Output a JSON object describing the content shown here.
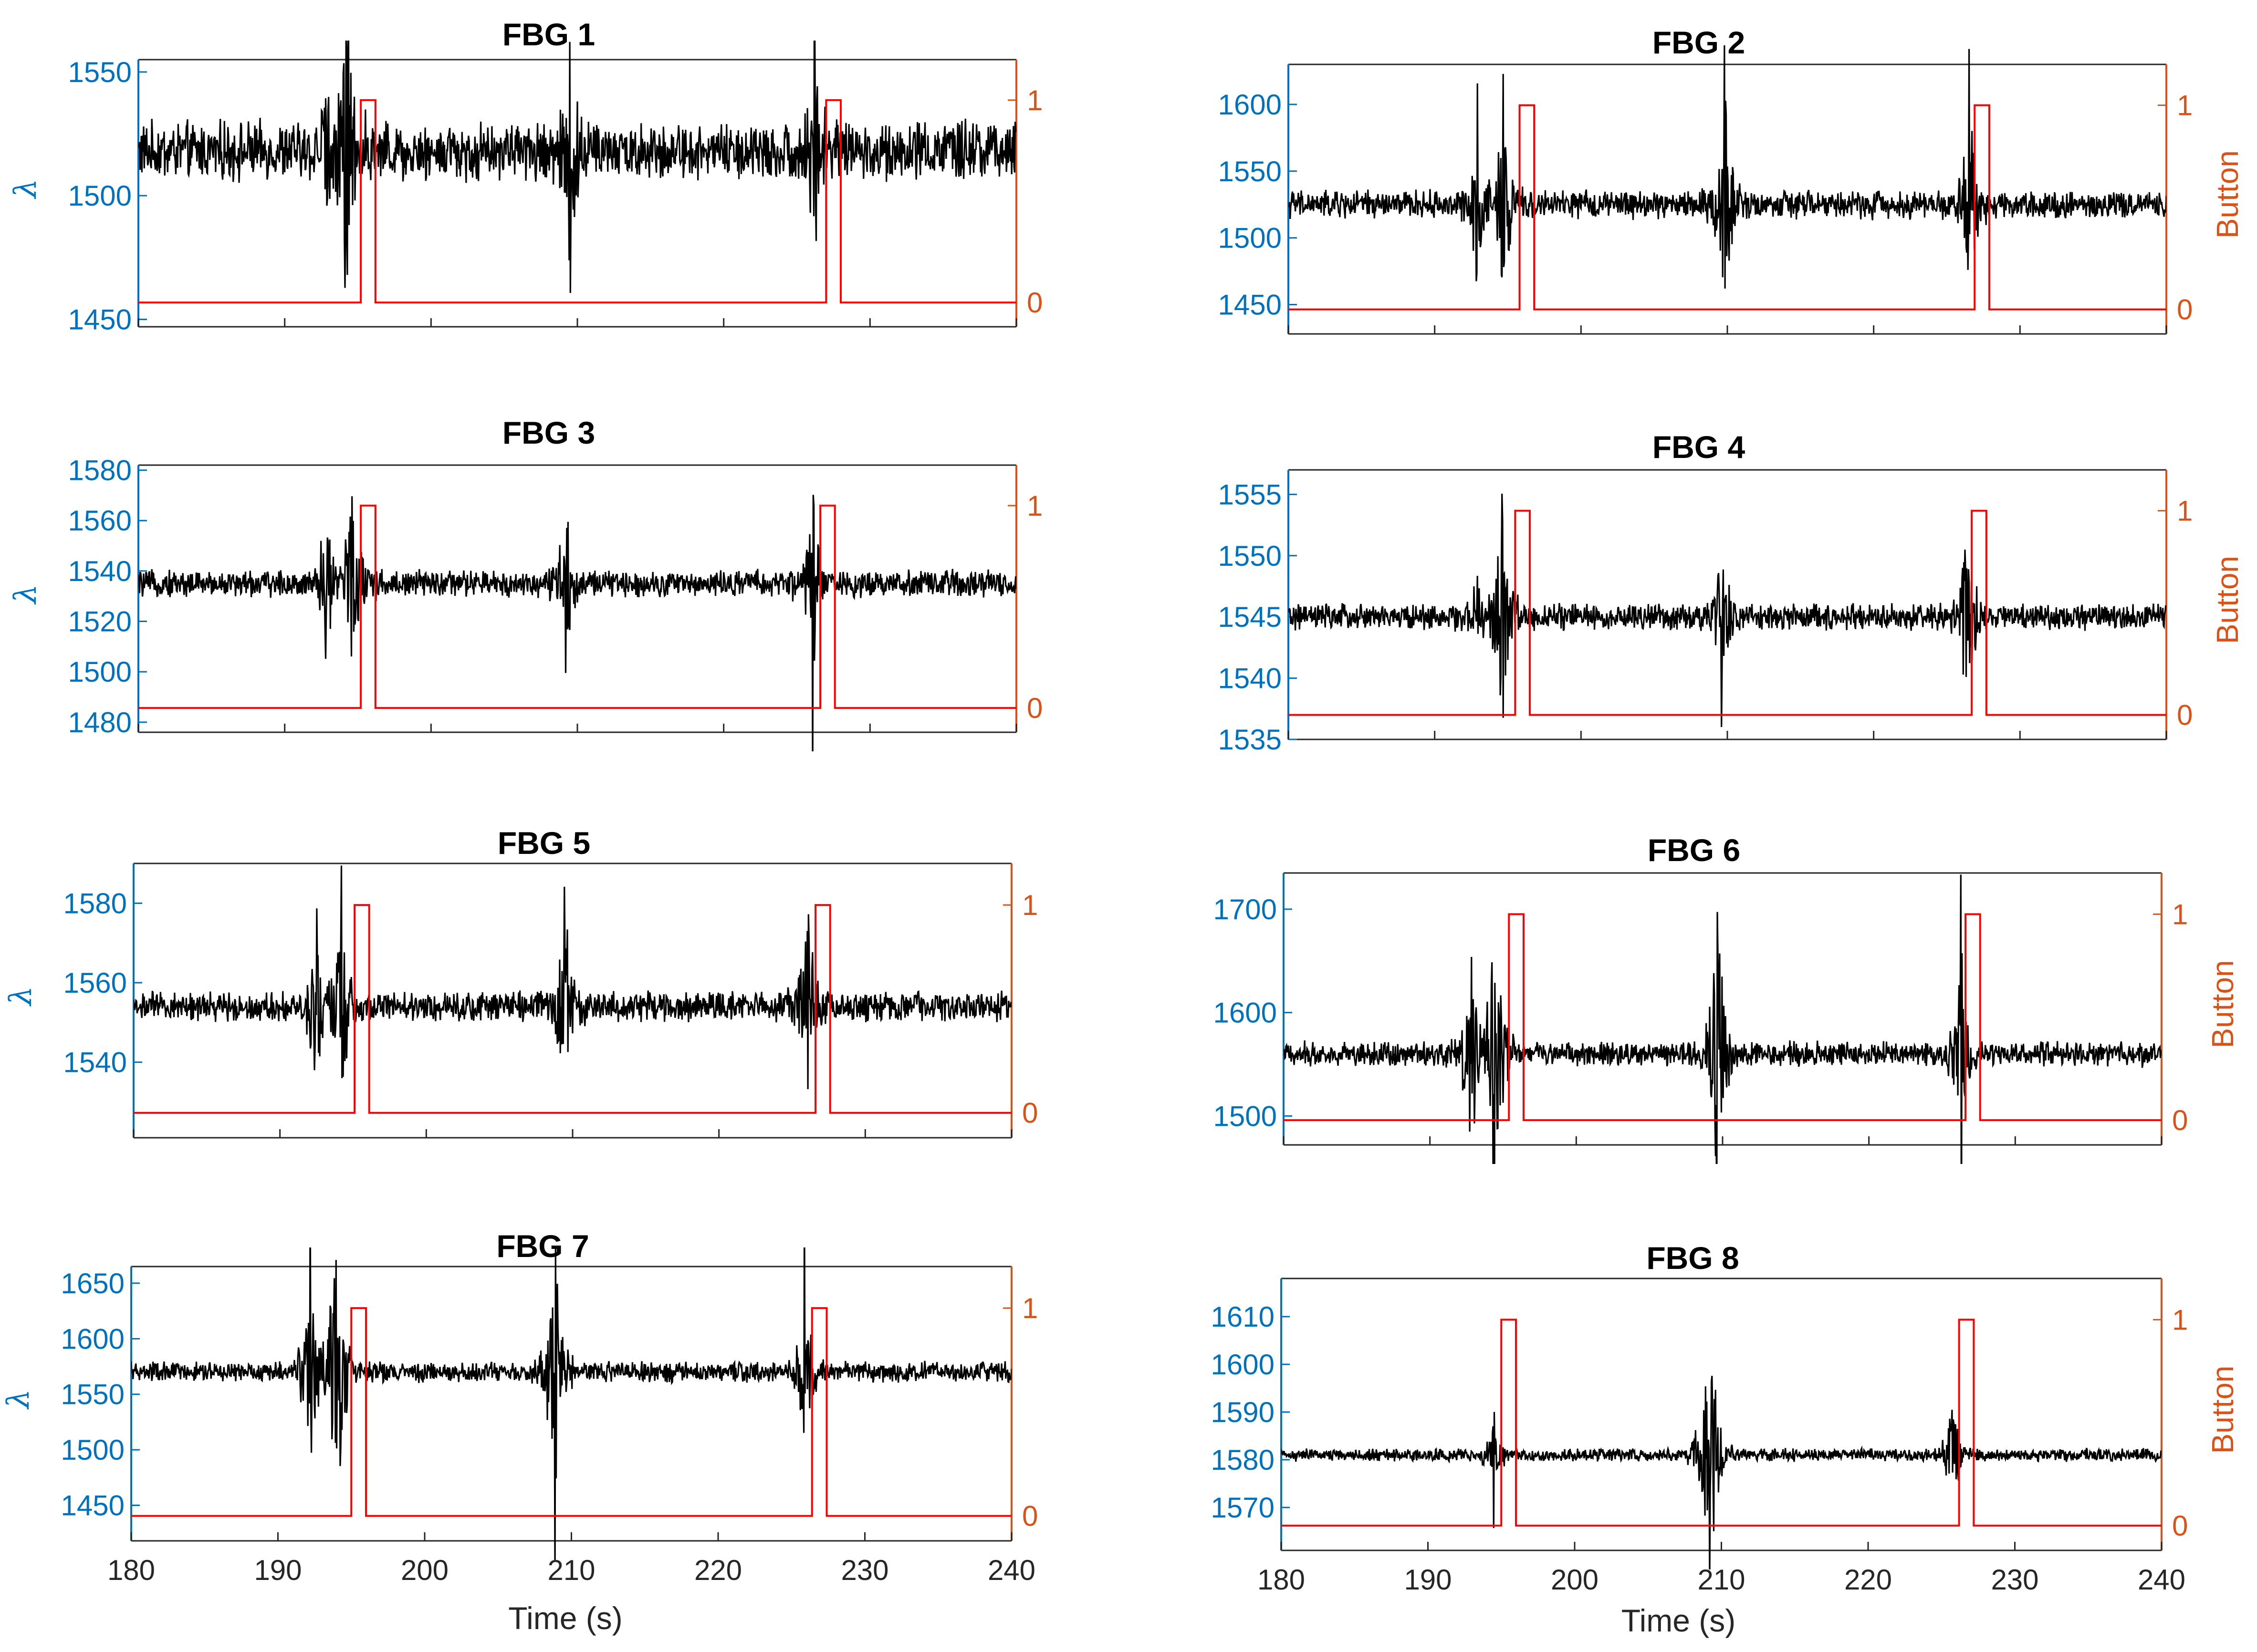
{
  "colors": {
    "left_axis": "#0072BD",
    "right_axis": "#D95319",
    "signal": "#000000",
    "button": "#FF0000",
    "text": "#262626"
  },
  "chart_data": [
    {
      "type": "line",
      "title": "FBG 1",
      "ylabel_left": "λ",
      "ylabel_right": "",
      "xlabel": "",
      "xlim": [
        180,
        240
      ],
      "xticks": [
        "180",
        "190",
        "200",
        "210",
        "220",
        "230",
        "240"
      ],
      "show_xticks": false,
      "ylim_left": [
        1447,
        1555
      ],
      "yticks_left": [
        "1450",
        "1500",
        "1550"
      ],
      "ylim_right": [
        -0.12,
        1.2
      ],
      "yticks_right": [
        "0",
        "1"
      ],
      "baseline": 1518,
      "noise": 9,
      "button_windows": [
        [
          195.2,
          196.2
        ],
        [
          227.0,
          228.0
        ]
      ],
      "spikes": [
        {
          "t": 193.0,
          "a": 30
        },
        {
          "t": 194.2,
          "a": 70
        },
        {
          "t": 209.5,
          "a": 50
        },
        {
          "t": 226.2,
          "a": 45
        }
      ]
    },
    {
      "type": "line",
      "title": "FBG 2",
      "ylabel_left": "",
      "ylabel_right": "Button",
      "xlabel": "",
      "xlim": [
        180,
        240
      ],
      "xticks": [
        "180",
        "190",
        "200",
        "210",
        "220",
        "230",
        "240"
      ],
      "show_xticks": false,
      "ylim_left": [
        1428,
        1630
      ],
      "yticks_left": [
        "1450",
        "1500",
        "1550",
        "1600"
      ],
      "ylim_right": [
        -0.12,
        1.2
      ],
      "yticks_right": [
        "0",
        "1"
      ],
      "baseline": 1525,
      "noise": 8,
      "button_windows": [
        [
          195.8,
          196.8
        ],
        [
          226.9,
          227.9
        ]
      ],
      "spikes": [
        {
          "t": 192.9,
          "a": 60
        },
        {
          "t": 194.7,
          "a": 75
        },
        {
          "t": 209.8,
          "a": 100
        },
        {
          "t": 226.5,
          "a": 85
        }
      ]
    },
    {
      "type": "line",
      "title": "FBG 3",
      "ylabel_left": "λ",
      "ylabel_right": "",
      "xlabel": "",
      "xlim": [
        180,
        240
      ],
      "xticks": [
        "180",
        "190",
        "200",
        "210",
        "220",
        "230",
        "240"
      ],
      "show_xticks": false,
      "ylim_left": [
        1476,
        1582
      ],
      "yticks_left": [
        "1480",
        "1500",
        "1520",
        "1540",
        "1560",
        "1580"
      ],
      "ylim_right": [
        -0.12,
        1.2
      ],
      "yticks_right": [
        "0",
        "1"
      ],
      "baseline": 1535,
      "noise": 4,
      "button_windows": [
        [
          195.2,
          196.2
        ],
        [
          226.6,
          227.6
        ]
      ],
      "spikes": [
        {
          "t": 192.8,
          "a": 30
        },
        {
          "t": 194.7,
          "a": 45
        },
        {
          "t": 209.2,
          "a": 35
        },
        {
          "t": 226.1,
          "a": 40
        }
      ]
    },
    {
      "type": "line",
      "title": "FBG 4",
      "ylabel_left": "",
      "ylabel_right": "Button",
      "xlabel": "",
      "xlim": [
        180,
        240
      ],
      "xticks": [
        "180",
        "190",
        "200",
        "210",
        "220",
        "230",
        "240"
      ],
      "show_xticks": false,
      "ylim_left": [
        1535,
        1557
      ],
      "yticks_left": [
        "1535",
        "1540",
        "1545",
        "1550",
        "1555"
      ],
      "ylim_right": [
        -0.12,
        1.2
      ],
      "yticks_right": [
        "0",
        "1"
      ],
      "baseline": 1545,
      "noise": 0.8,
      "button_windows": [
        [
          195.5,
          196.5
        ],
        [
          226.7,
          227.7
        ]
      ],
      "spikes": [
        {
          "t": 192.8,
          "a": 5
        },
        {
          "t": 194.6,
          "a": 10
        },
        {
          "t": 209.6,
          "a": 6
        },
        {
          "t": 226.4,
          "a": 8
        }
      ]
    },
    {
      "type": "line",
      "title": "FBG 5",
      "ylabel_left": "λ",
      "ylabel_right": "",
      "xlabel": "",
      "xlim": [
        180,
        240
      ],
      "xticks": [
        "180",
        "190",
        "200",
        "210",
        "220",
        "230",
        "240"
      ],
      "show_xticks": false,
      "ylim_left": [
        1521,
        1590
      ],
      "yticks_left": [
        "1540",
        "1560",
        "1580"
      ],
      "ylim_right": [
        -0.12,
        1.2
      ],
      "yticks_right": [
        "0",
        "1"
      ],
      "baseline": 1554,
      "noise": 2.8,
      "button_windows": [
        [
          195.1,
          196.1
        ],
        [
          226.6,
          227.6
        ]
      ],
      "spikes": [
        {
          "t": 192.5,
          "a": 22
        },
        {
          "t": 194.2,
          "a": 30
        },
        {
          "t": 209.4,
          "a": 32
        },
        {
          "t": 226.1,
          "a": 28
        }
      ]
    },
    {
      "type": "line",
      "title": "FBG 6",
      "ylabel_left": "",
      "ylabel_right": "Button",
      "xlabel": "",
      "xlim": [
        180,
        240
      ],
      "xticks": [
        "180",
        "190",
        "200",
        "210",
        "220",
        "230",
        "240"
      ],
      "show_xticks": false,
      "ylim_left": [
        1472,
        1735
      ],
      "yticks_left": [
        "1500",
        "1600",
        "1700"
      ],
      "ylim_right": [
        -0.12,
        1.2
      ],
      "yticks_right": [
        "0",
        "1"
      ],
      "baseline": 1560,
      "noise": 9,
      "button_windows": [
        [
          195.4,
          196.4
        ],
        [
          226.6,
          227.6
        ]
      ],
      "spikes": [
        {
          "t": 192.8,
          "a": 95
        },
        {
          "t": 194.4,
          "a": 150
        },
        {
          "t": 209.6,
          "a": 150
        },
        {
          "t": 226.3,
          "a": 110
        }
      ]
    },
    {
      "type": "line",
      "title": "FBG 7",
      "ylabel_left": "λ",
      "ylabel_right": "",
      "xlabel": "",
      "xlim": [
        180,
        240
      ],
      "xticks": [
        "180",
        "190",
        "200",
        "210",
        "220",
        "230",
        "240"
      ],
      "show_xticks": true,
      "ylim_left": [
        1418,
        1665
      ],
      "yticks_left": [
        "1450",
        "1500",
        "1550",
        "1600",
        "1650"
      ],
      "ylim_right": [
        -0.12,
        1.2
      ],
      "yticks_right": [
        "0",
        "1"
      ],
      "baseline": 1570,
      "noise": 7,
      "button_windows": [
        [
          195.0,
          196.0
        ],
        [
          226.4,
          227.4
        ]
      ],
      "spikes": [
        {
          "t": 192.2,
          "a": 90
        },
        {
          "t": 194.0,
          "a": 150
        },
        {
          "t": 208.9,
          "a": 120
        },
        {
          "t": 225.9,
          "a": 80
        }
      ]
    },
    {
      "type": "line",
      "title": "FBG 8",
      "ylabel_left": "",
      "ylabel_right": "Button",
      "xlabel": "Time (s)",
      "xlim": [
        180,
        240
      ],
      "xticks": [
        "180",
        "190",
        "200",
        "210",
        "220",
        "230",
        "240"
      ],
      "show_xticks": true,
      "ylim_left": [
        1561,
        1618
      ],
      "yticks_left": [
        "1570",
        "1580",
        "1590",
        "1600",
        "1610"
      ],
      "ylim_right": [
        -0.12,
        1.2
      ],
      "yticks_right": [
        "0",
        "1"
      ],
      "baseline": 1581,
      "noise": 1,
      "button_windows": [
        [
          195.0,
          196.0
        ],
        [
          226.2,
          227.2
        ]
      ],
      "spikes": [
        {
          "t": 194.5,
          "a": 8
        },
        {
          "t": 209.2,
          "a": 35
        },
        {
          "t": 225.8,
          "a": 12
        }
      ]
    }
  ],
  "xlabel_left": "Time (s)"
}
